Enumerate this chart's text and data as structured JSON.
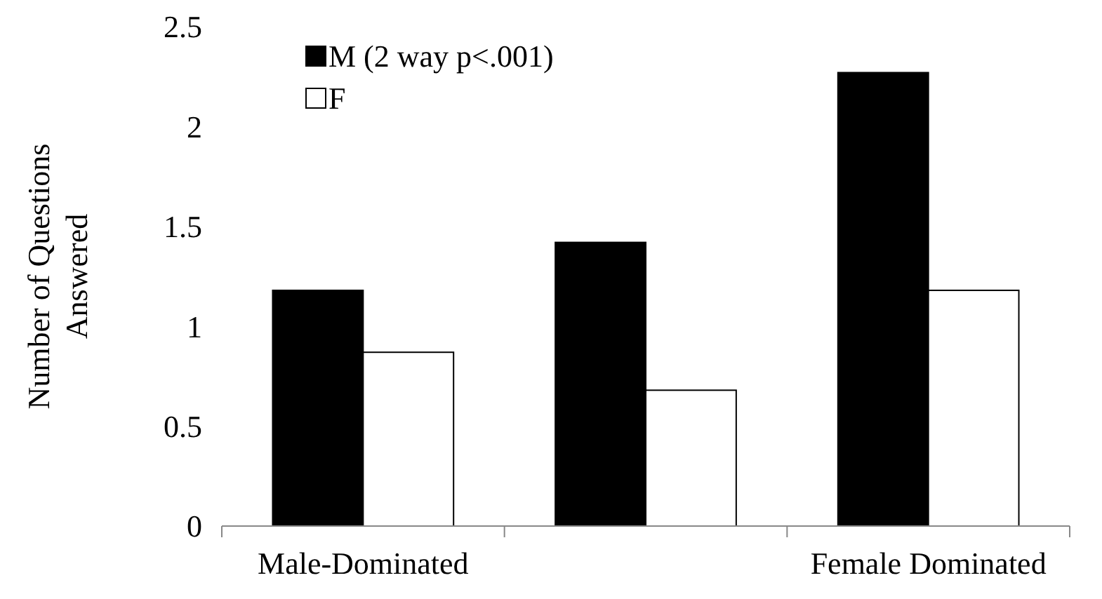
{
  "chart_data": {
    "type": "bar",
    "ylabel": "Number of Questions Answered",
    "categories": [
      "Male-Dominated",
      null,
      "Female Dominated"
    ],
    "series": [
      {
        "name": "M (2 way p<.001)",
        "color": "#000000",
        "values": [
          1.18,
          1.42,
          2.27
        ]
      },
      {
        "name": "F",
        "color": "#ffffff",
        "values": [
          0.87,
          0.68,
          1.18
        ]
      }
    ],
    "ylim": [
      0,
      2.5
    ],
    "yticks": [
      0,
      0.5,
      1,
      1.5,
      2,
      2.5
    ],
    "legend": "top left",
    "grid": false
  }
}
